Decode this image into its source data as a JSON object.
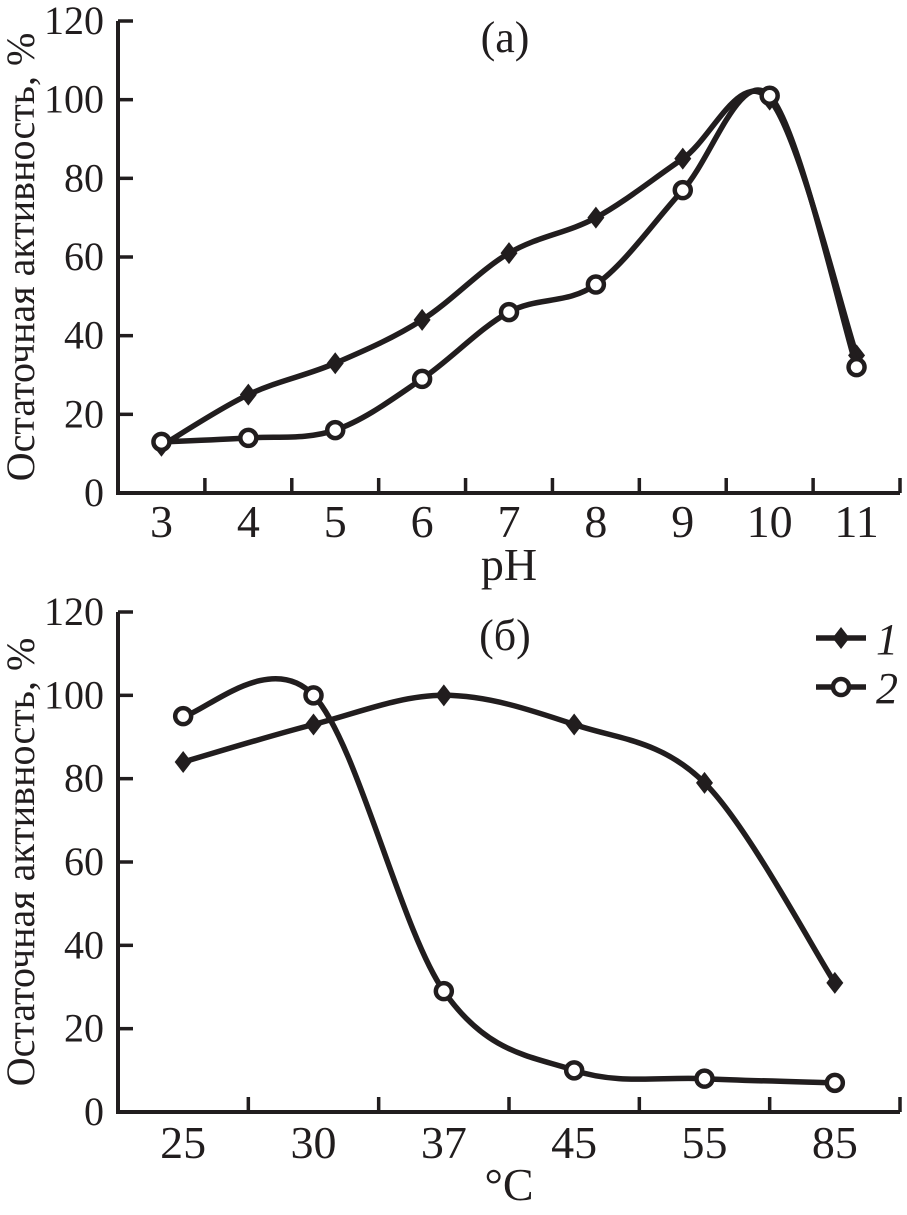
{
  "figure": {
    "ink": "#211d1e",
    "background": "#ffffff"
  },
  "chart_data": [
    {
      "id": "a",
      "type": "line",
      "panel_label": "(а)",
      "xlabel": "pH",
      "ylabel": "Остаточная активность, %",
      "categories": [
        "3",
        "4",
        "5",
        "6",
        "7",
        "8",
        "9",
        "10",
        "11"
      ],
      "ylim": [
        0,
        120
      ],
      "y_ticks": [
        0,
        20,
        40,
        60,
        80,
        100,
        120
      ],
      "grid": false,
      "legend": null,
      "series": [
        {
          "name": "1",
          "marker": "diamond",
          "values": [
            12,
            25,
            33,
            44,
            61,
            70,
            85,
            100,
            35
          ]
        },
        {
          "name": "2",
          "marker": "circle",
          "values": [
            13,
            14,
            16,
            29,
            46,
            53,
            77,
            101,
            32
          ]
        }
      ]
    },
    {
      "id": "b",
      "type": "line",
      "panel_label": "(б)",
      "xlabel": "°C",
      "ylabel": "Остаточная активность, %",
      "categories": [
        "25",
        "30",
        "37",
        "45",
        "55",
        "85"
      ],
      "ylim": [
        0,
        120
      ],
      "y_ticks": [
        0,
        20,
        40,
        60,
        80,
        100,
        120
      ],
      "grid": false,
      "legend": {
        "position": "top-right",
        "entries": [
          {
            "label": "1",
            "marker": "diamond"
          },
          {
            "label": "2",
            "marker": "circle"
          }
        ]
      },
      "series": [
        {
          "name": "1",
          "marker": "diamond",
          "values": [
            84,
            93,
            100,
            93,
            79,
            31
          ]
        },
        {
          "name": "2",
          "marker": "circle",
          "values": [
            95,
            100,
            29,
            10,
            8,
            7
          ]
        }
      ]
    }
  ]
}
